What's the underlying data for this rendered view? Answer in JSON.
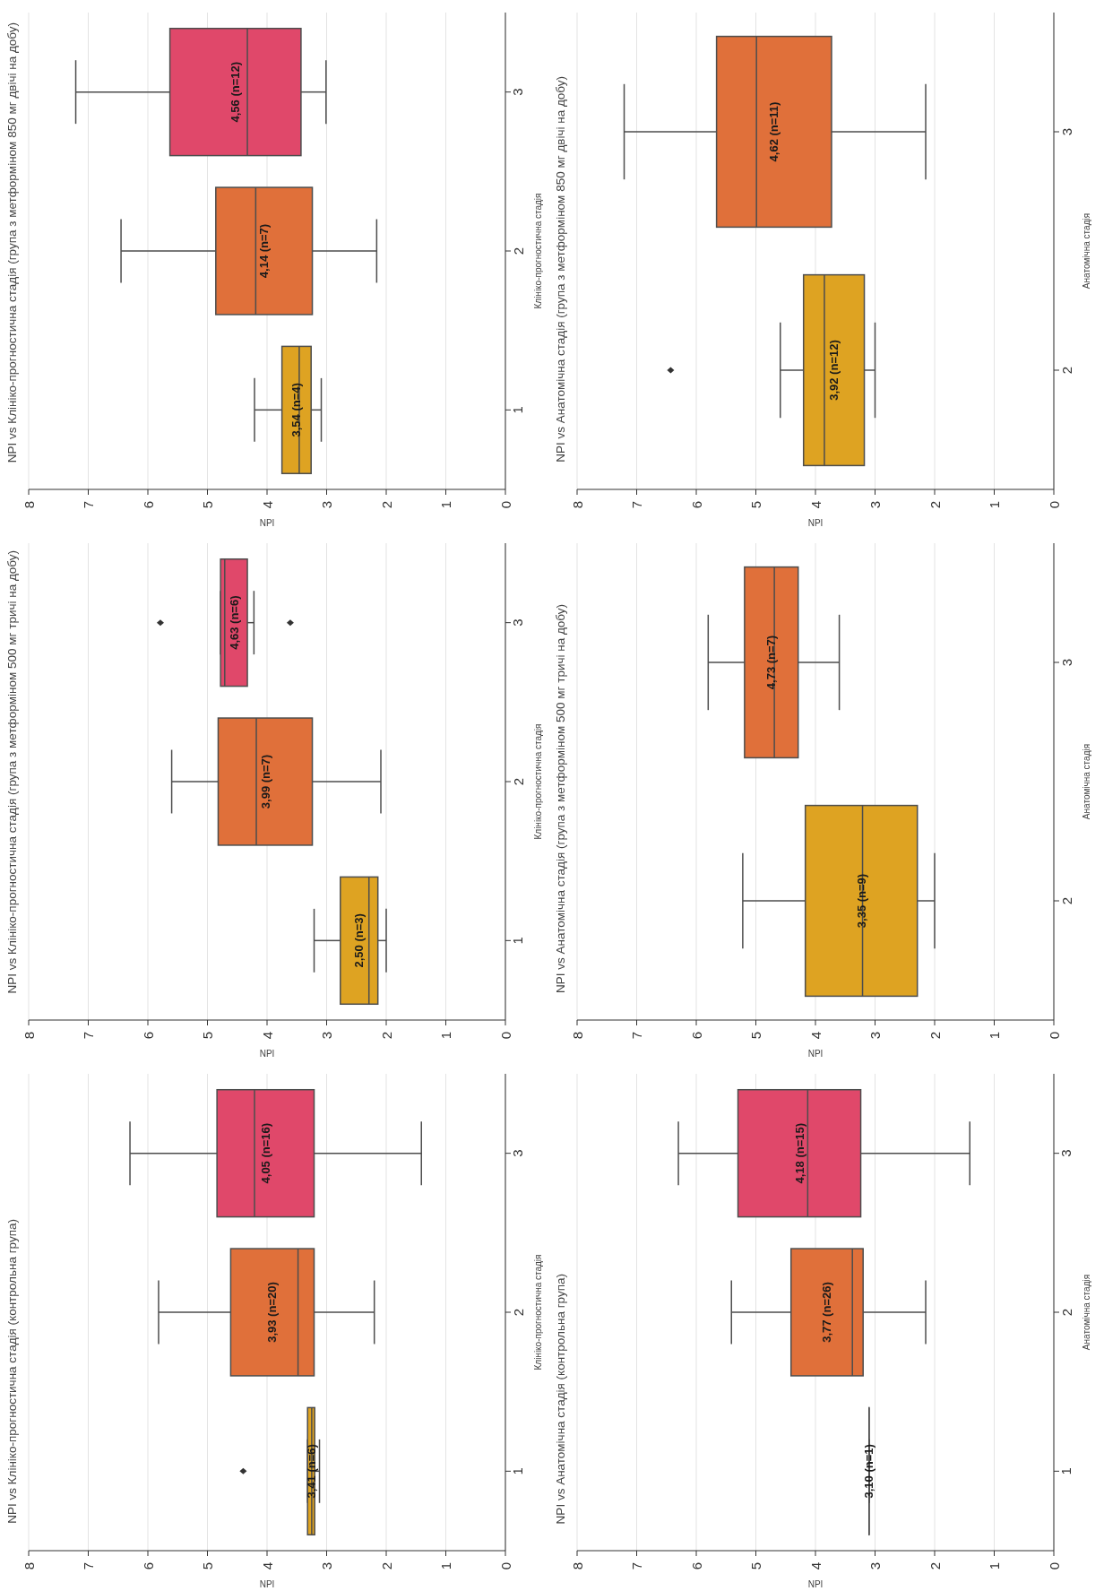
{
  "chart_data": [
    {
      "type": "box",
      "orientation": "horizontal",
      "title": "NPI vs Клініко-прогностична стадія (група з метформіном 850 мг двічі на добу)",
      "ylabel": "Клініко-прогностична стадія",
      "xlabel": "NPI",
      "categories": [
        "3",
        "2",
        "1"
      ],
      "colors": [
        "#e0486a",
        "#e0703a",
        "#dea322"
      ],
      "boxes": [
        {
          "low": 3.01,
          "q1": 3.43,
          "median": 4.33,
          "q3": 5.63,
          "high": 7.21
        },
        {
          "low": 2.16,
          "q1": 3.24,
          "median": 4.19,
          "q3": 4.86,
          "high": 6.45
        },
        {
          "low": 3.09,
          "q1": 3.26,
          "median": 3.46,
          "q3": 3.75,
          "high": 4.21
        }
      ],
      "annotations": [
        "4,56 (n=12)",
        "4,14 (n=7)",
        "3,54 (n=4)"
      ],
      "xlim": [
        8,
        0
      ],
      "xticks": [
        8,
        7,
        6,
        5,
        4,
        3,
        2,
        1,
        0
      ],
      "grid": "x"
    },
    {
      "type": "box",
      "orientation": "horizontal",
      "title": "NPI vs Анатомічна стадія (група з метформіном 850 мг двічі на добу)",
      "ylabel": "Анатомічна стадія",
      "xlabel": "NPI",
      "categories": [
        "3",
        "2"
      ],
      "colors": [
        "#e0703a",
        "#dea322"
      ],
      "boxes": [
        {
          "low": 2.15,
          "q1": 3.73,
          "median": 4.99,
          "q3": 5.66,
          "high": 7.21
        },
        {
          "low": 3.0,
          "q1": 3.18,
          "median": 3.85,
          "q3": 4.2,
          "high": 4.59,
          "outliers": [
            6.43
          ]
        }
      ],
      "annotations": [
        "4,62 (n=11)",
        "3,92 (n=12)"
      ],
      "xlim": [
        8,
        0
      ],
      "xticks": [
        8,
        7,
        6,
        5,
        4,
        3,
        2,
        1,
        0
      ],
      "grid": "x"
    },
    {
      "type": "box",
      "orientation": "horizontal",
      "title": "NPI vs Клініко-прогностична стадія (група з метформіном 500 мг тричі на добу)",
      "ylabel": "Клініко-прогностична стадія",
      "xlabel": "NPI",
      "categories": [
        "3",
        "2",
        "1"
      ],
      "colors": [
        "#e0486a",
        "#e0703a",
        "#dea322"
      ],
      "boxes": [
        {
          "low": 4.22,
          "q1": 4.33,
          "median": 4.71,
          "q3": 4.78,
          "high": 4.78,
          "outliers": [
            5.79,
            3.61
          ]
        },
        {
          "low": 2.09,
          "q1": 3.24,
          "median": 4.18,
          "q3": 4.82,
          "high": 5.6
        },
        {
          "low": 2.0,
          "q1": 2.14,
          "median": 2.29,
          "q3": 2.77,
          "high": 3.21
        }
      ],
      "annotations": [
        "4,63 (n=6)",
        "3,99 (n=7)",
        "2,50 (n=3)"
      ],
      "xlim": [
        8,
        0
      ],
      "xticks": [
        8,
        7,
        6,
        5,
        4,
        3,
        2,
        1,
        0
      ],
      "grid": "x"
    },
    {
      "type": "box",
      "orientation": "horizontal",
      "title": "NPI vs Анатомічна стадія (група з метформіном 500 мг тричі на добу)",
      "ylabel": "Анатомічна стадія",
      "xlabel": "NPI",
      "categories": [
        "3",
        "2"
      ],
      "colors": [
        "#e0703a",
        "#dea322"
      ],
      "boxes": [
        {
          "low": 3.6,
          "q1": 4.29,
          "median": 4.69,
          "q3": 5.19,
          "high": 5.8
        },
        {
          "low": 2.0,
          "q1": 2.29,
          "median": 3.21,
          "q3": 4.17,
          "high": 5.22
        }
      ],
      "annotations": [
        "4,73 (n=7)",
        "3,35 (n=9)"
      ],
      "xlim": [
        8,
        0
      ],
      "xticks": [
        8,
        7,
        6,
        5,
        4,
        3,
        2,
        1,
        0
      ],
      "grid": "x"
    },
    {
      "type": "box",
      "orientation": "horizontal",
      "title": "NPI vs Клініко-прогностична стадія (контрольна група)",
      "ylabel": "Клініко-прогностична стадія",
      "xlabel": "NPI",
      "categories": [
        "3",
        "2",
        "1"
      ],
      "colors": [
        "#e0486a",
        "#e0703a",
        "#dea322"
      ],
      "boxes": [
        {
          "low": 1.41,
          "q1": 3.21,
          "median": 4.21,
          "q3": 4.84,
          "high": 6.3
        },
        {
          "low": 2.2,
          "q1": 3.21,
          "median": 3.48,
          "q3": 4.61,
          "high": 5.82
        },
        {
          "low": 3.12,
          "q1": 3.2,
          "median": 3.25,
          "q3": 3.32,
          "high": 3.32,
          "outliers": [
            4.4
          ]
        }
      ],
      "annotations": [
        "4,05 (n=16)",
        "3,93 (n=20)",
        "3,41 (n=6)"
      ],
      "xlim": [
        8,
        0
      ],
      "xticks": [
        8,
        7,
        6,
        5,
        4,
        3,
        2,
        1,
        0
      ],
      "grid": "x"
    },
    {
      "type": "box",
      "orientation": "horizontal",
      "title": "NPI vs Анатомічна стадія (контрольна група)",
      "ylabel": "Анатомічна стадія",
      "xlabel": "NPI",
      "categories": [
        "3",
        "2",
        "1"
      ],
      "colors": [
        "#e0486a",
        "#e0703a",
        "#dea322"
      ],
      "boxes": [
        {
          "low": 1.41,
          "q1": 3.24,
          "median": 4.13,
          "q3": 5.3,
          "high": 6.3
        },
        {
          "low": 2.15,
          "q1": 3.2,
          "median": 3.38,
          "q3": 4.41,
          "high": 5.41
        },
        {
          "low": 3.1,
          "q1": 3.1,
          "median": 3.1,
          "q3": 3.1,
          "high": 3.1
        }
      ],
      "annotations": [
        "4,18 (n=15)",
        "3,77 (n=26)",
        "3,10 (n=1)"
      ],
      "xlim": [
        8,
        0
      ],
      "xticks": [
        8,
        7,
        6,
        5,
        4,
        3,
        2,
        1,
        0
      ],
      "grid": "x"
    }
  ]
}
